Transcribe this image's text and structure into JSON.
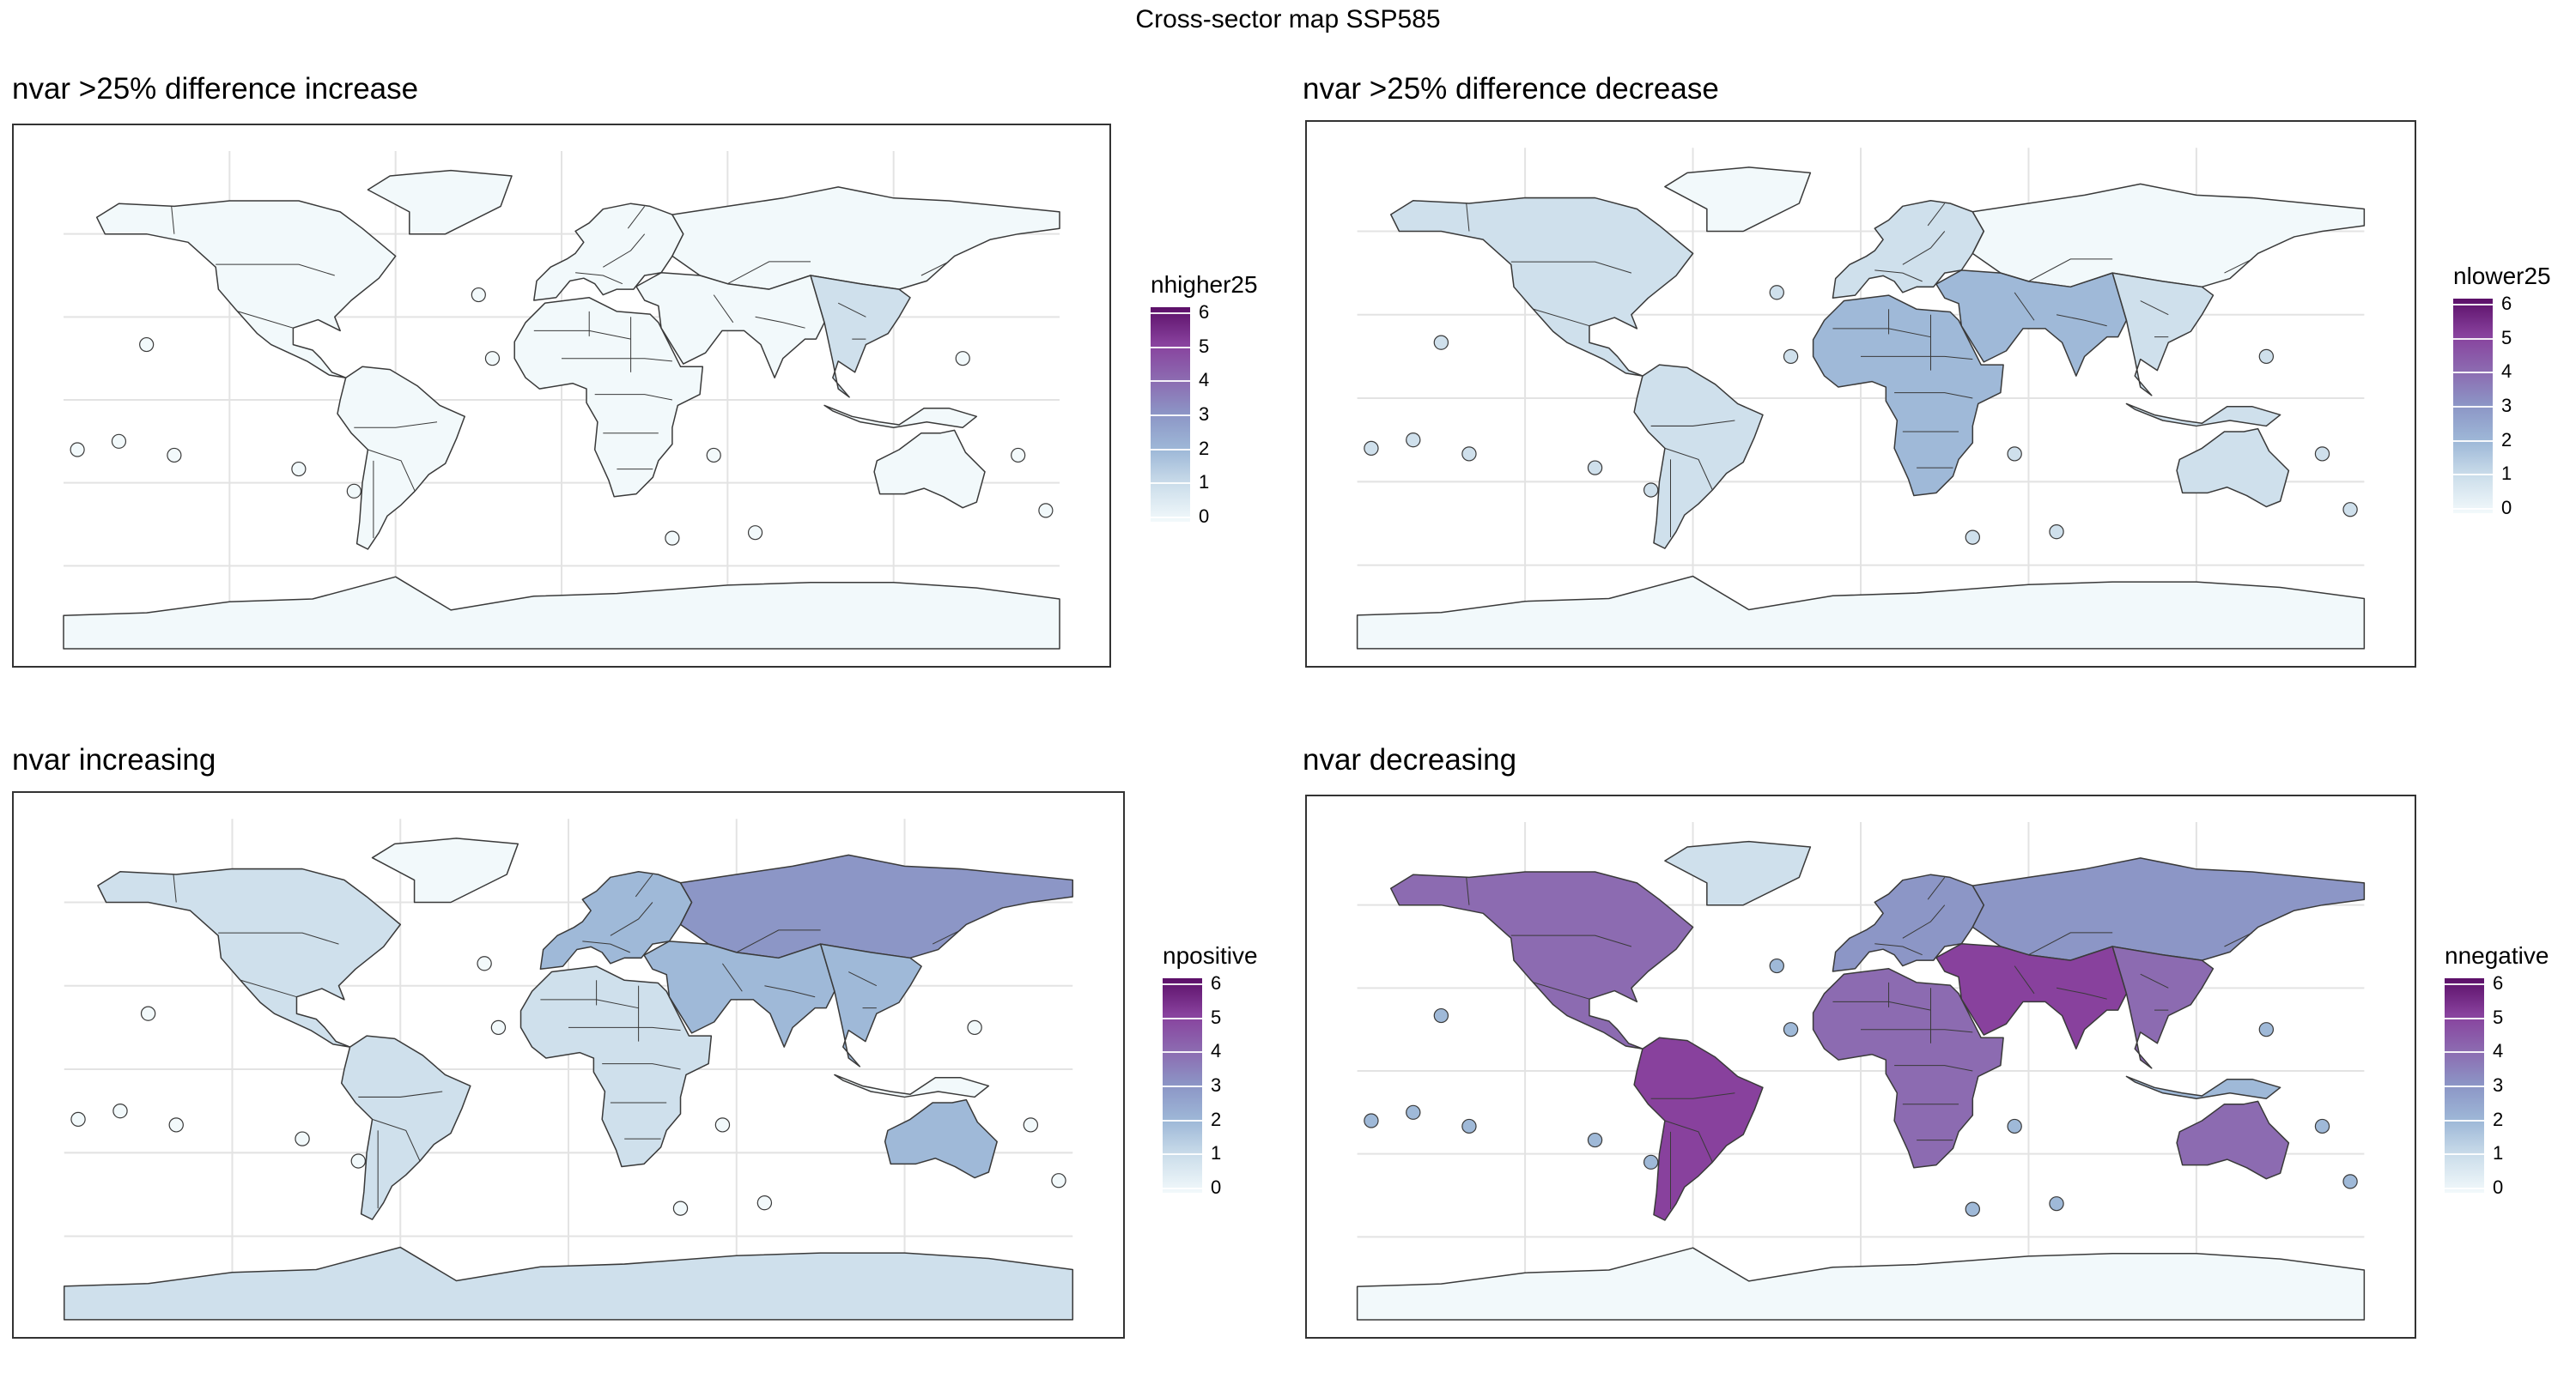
{
  "title": "Cross-sector map SSP585",
  "colors": {
    "frame": "#333333",
    "grid": "#e3e3e3",
    "ocean": "#ffffff",
    "border": "#3a3a3a",
    "scale": [
      "#f2f9fb",
      "#cfe0ec",
      "#9fb9d8",
      "#8c96c6",
      "#8c6bb1",
      "#88419d",
      "#5b0f68"
    ]
  },
  "panels": [
    {
      "id": "nhigher25",
      "title": "nvar >25% difference increase",
      "legend": {
        "title": "nhigher25",
        "ticks": [
          "6",
          "5",
          "4",
          "3",
          "2",
          "1",
          "0"
        ]
      },
      "regions": {
        "north_america": 0,
        "south_america": 0,
        "europe": 0,
        "africa": 0,
        "asia": 0,
        "south_asia": 0,
        "east_asia": 1,
        "oceania": 0,
        "antarctica": 0,
        "greenland": 0,
        "islands": 0
      }
    },
    {
      "id": "nlower25",
      "title": "nvar >25% difference decrease",
      "legend": {
        "title": "nlower25",
        "ticks": [
          "6",
          "5",
          "4",
          "3",
          "2",
          "1",
          "0"
        ]
      },
      "regions": {
        "north_america": 1,
        "south_america": 1,
        "europe": 1,
        "africa": 2,
        "asia": 0,
        "south_asia": 2,
        "east_asia": 1,
        "oceania": 1,
        "antarctica": 0,
        "greenland": 0,
        "islands": 1
      }
    },
    {
      "id": "npositive",
      "title": "nvar increasing",
      "legend": {
        "title": "npositive",
        "ticks": [
          "6",
          "5",
          "4",
          "3",
          "2",
          "1",
          "0"
        ]
      },
      "regions": {
        "north_america": 1,
        "south_america": 1,
        "europe": 2,
        "africa": 1,
        "asia": 3,
        "south_asia": 2,
        "east_asia": 2,
        "oceania": 2,
        "antarctica": 1,
        "greenland": 0,
        "islands": 0
      }
    },
    {
      "id": "nnegative",
      "title": "nvar decreasing",
      "legend": {
        "title": "nnegative",
        "ticks": [
          "6",
          "5",
          "4",
          "3",
          "2",
          "1",
          "0"
        ]
      },
      "regions": {
        "north_america": 4,
        "south_america": 5,
        "europe": 3,
        "africa": 4,
        "asia": 3,
        "south_asia": 5,
        "east_asia": 4,
        "oceania": 4,
        "antarctica": 0,
        "greenland": 1,
        "islands": 2
      }
    }
  ]
}
